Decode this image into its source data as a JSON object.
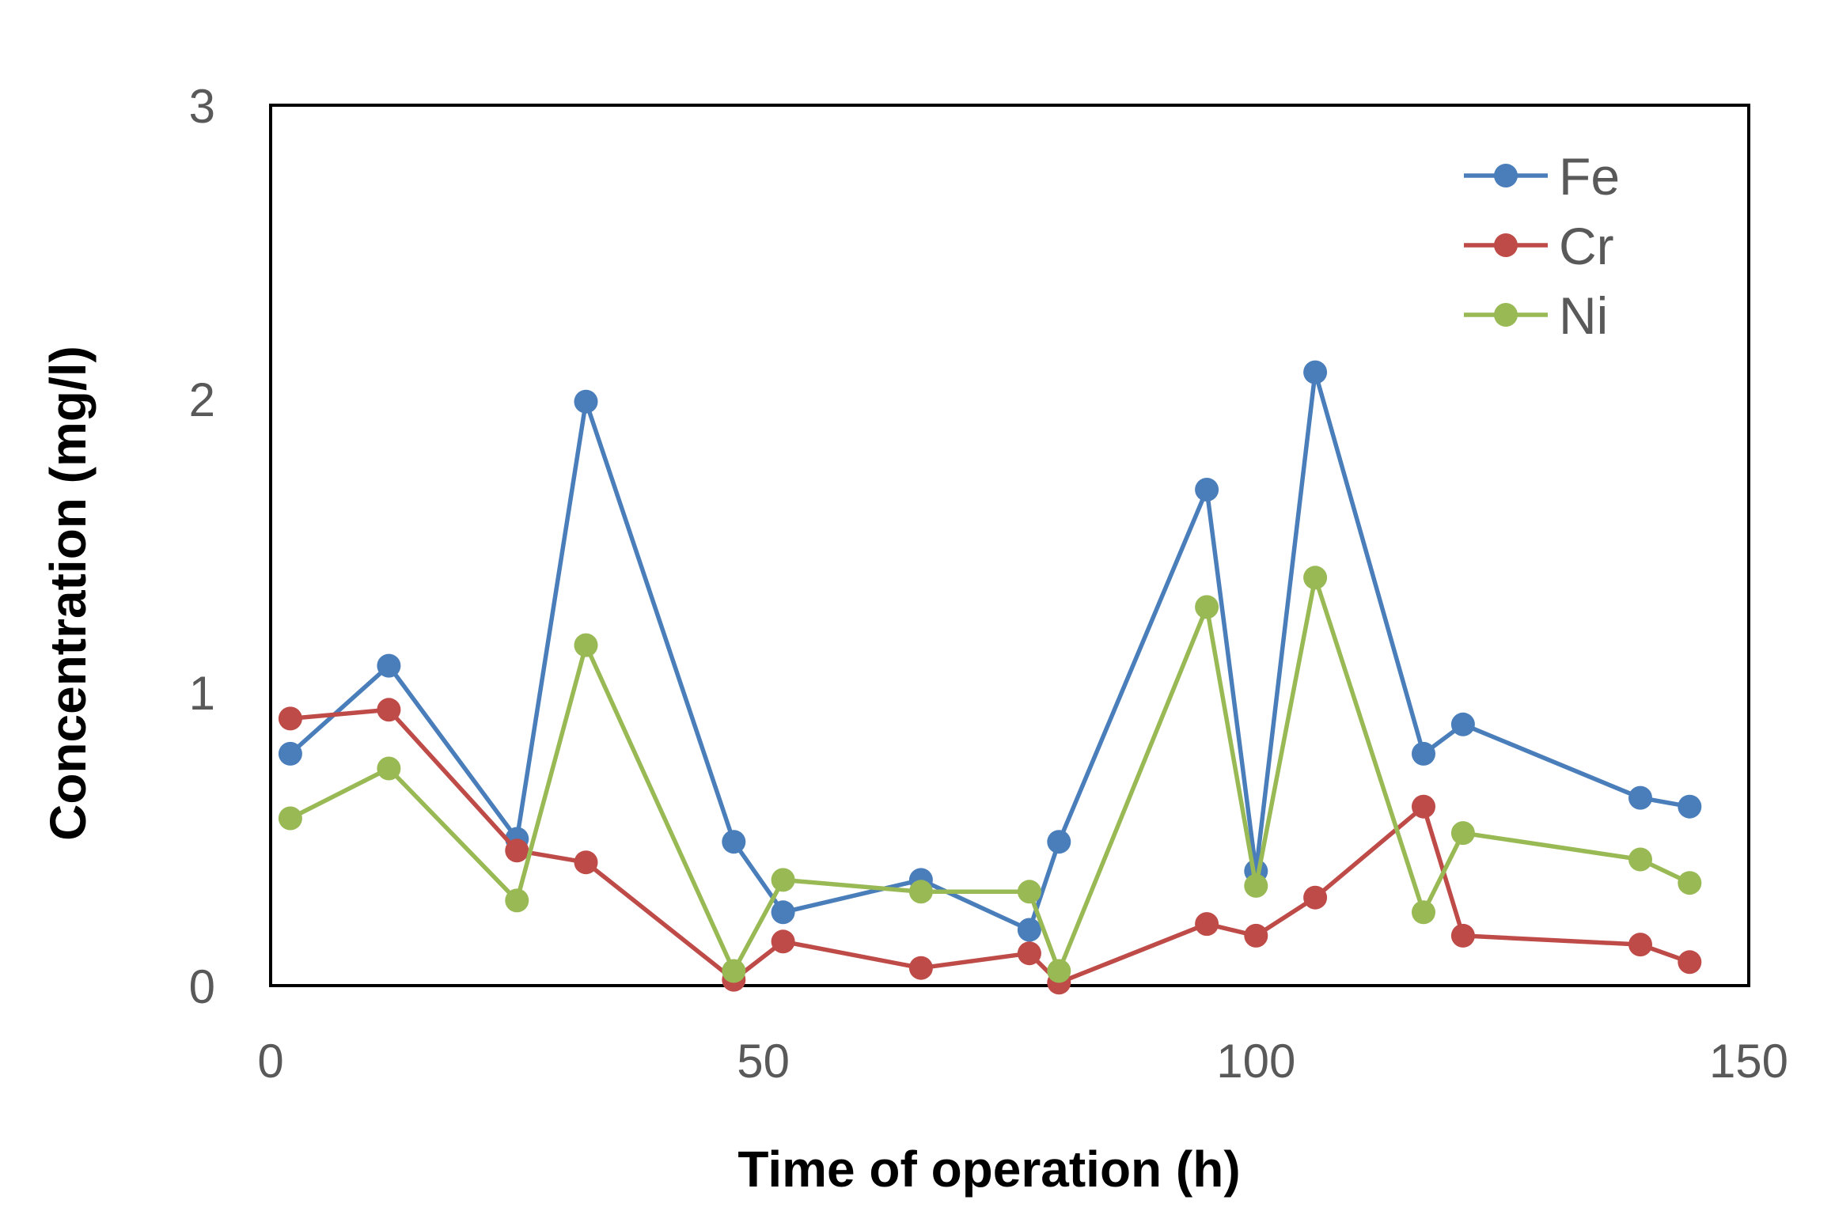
{
  "chart_data": {
    "type": "line",
    "xlabel": "Time of operation (h)",
    "ylabel": "Concentration (mg/l)",
    "xlim": [
      0,
      150
    ],
    "ylim": [
      0,
      3
    ],
    "xticks": [
      0,
      50,
      100,
      150
    ],
    "yticks": [
      0,
      1,
      2,
      3
    ],
    "grid": false,
    "legend": "top-right",
    "series": [
      {
        "name": "Fe",
        "color": "#4a7ebb",
        "points": [
          [
            2,
            0.79
          ],
          [
            12,
            1.09
          ],
          [
            25,
            0.5
          ],
          [
            32,
            1.99
          ],
          [
            47,
            0.49
          ],
          [
            52,
            0.25
          ],
          [
            66,
            0.36
          ],
          [
            77,
            0.19
          ],
          [
            80,
            0.49
          ],
          [
            95,
            1.69
          ],
          [
            100,
            0.39
          ],
          [
            106,
            2.09
          ],
          [
            117,
            0.79
          ],
          [
            121,
            0.89
          ],
          [
            139,
            0.64
          ],
          [
            144,
            0.61
          ]
        ]
      },
      {
        "name": "Cr",
        "color": "#be4b48",
        "points": [
          [
            2,
            0.91
          ],
          [
            12,
            0.94
          ],
          [
            25,
            0.46
          ],
          [
            32,
            0.42
          ],
          [
            47,
            0.02
          ],
          [
            52,
            0.15
          ],
          [
            66,
            0.06
          ],
          [
            77,
            0.11
          ],
          [
            80,
            0.01
          ],
          [
            95,
            0.21
          ],
          [
            100,
            0.17
          ],
          [
            106,
            0.3
          ],
          [
            117,
            0.61
          ],
          [
            121,
            0.17
          ],
          [
            139,
            0.14
          ],
          [
            144,
            0.08
          ]
        ]
      },
      {
        "name": "Ni",
        "color": "#98b954",
        "points": [
          [
            2,
            0.57
          ],
          [
            12,
            0.74
          ],
          [
            25,
            0.29
          ],
          [
            32,
            1.16
          ],
          [
            47,
            0.05
          ],
          [
            52,
            0.36
          ],
          [
            66,
            0.32
          ],
          [
            77,
            0.32
          ],
          [
            80,
            0.05
          ],
          [
            95,
            1.29
          ],
          [
            100,
            0.34
          ],
          [
            106,
            1.39
          ],
          [
            117,
            0.25
          ],
          [
            121,
            0.52
          ],
          [
            139,
            0.43
          ],
          [
            144,
            0.35
          ]
        ]
      }
    ]
  }
}
